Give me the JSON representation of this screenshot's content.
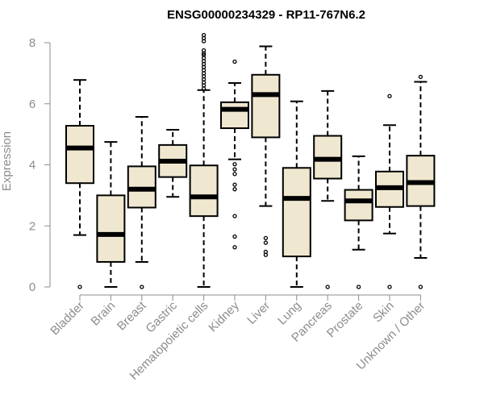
{
  "chart_data": {
    "type": "boxplot",
    "title": "ENSG00000234329 - RP11-767N6.2",
    "xlabel": "",
    "ylabel": "Expression",
    "ylim": [
      0,
      8
    ],
    "yticks": [
      "0",
      "2",
      "4",
      "6",
      "8"
    ],
    "grid": false,
    "colors": {
      "box_fill": "#efe7cf",
      "stroke": "#000000",
      "axis": "#8c8c8c"
    },
    "categories": [
      "Bladder",
      "Brain",
      "Breast",
      "Gastric",
      "Hematopoietic cells",
      "Kidney",
      "Liver",
      "Lung",
      "Pancreas",
      "Prostate",
      "Skin",
      "Unknown / Other"
    ],
    "boxes": [
      {
        "q1": 3.4,
        "median": 4.55,
        "q3": 5.28,
        "whisker_low": 1.7,
        "whisker_high": 6.78,
        "outliers": [
          0.0
        ]
      },
      {
        "q1": 0.82,
        "median": 1.72,
        "q3": 3.0,
        "whisker_low": 0.0,
        "whisker_high": 4.75,
        "outliers": []
      },
      {
        "q1": 2.6,
        "median": 3.2,
        "q3": 3.95,
        "whisker_low": 0.82,
        "whisker_high": 5.57,
        "outliers": [
          0.0
        ]
      },
      {
        "q1": 3.6,
        "median": 4.12,
        "q3": 4.65,
        "whisker_low": 2.95,
        "whisker_high": 5.15,
        "outliers": []
      },
      {
        "q1": 2.32,
        "median": 2.95,
        "q3": 3.98,
        "whisker_low": 0.0,
        "whisker_high": 6.45,
        "outliers": [
          6.5,
          6.6,
          6.7,
          6.8,
          6.9,
          7.0,
          7.1,
          7.2,
          7.3,
          7.4,
          7.5,
          7.6,
          7.65,
          7.75,
          8.05,
          8.15,
          8.25
        ]
      },
      {
        "q1": 5.2,
        "median": 5.82,
        "q3": 6.05,
        "whisker_low": 4.18,
        "whisker_high": 6.68,
        "outliers": [
          7.38,
          4.02,
          3.85,
          3.7,
          3.35,
          3.2,
          2.32,
          1.65,
          1.3
        ]
      },
      {
        "q1": 4.9,
        "median": 6.3,
        "q3": 6.95,
        "whisker_low": 2.65,
        "whisker_high": 7.88,
        "outliers": [
          1.6,
          1.45,
          1.15,
          1.05
        ]
      },
      {
        "q1": 1.0,
        "median": 2.9,
        "q3": 3.9,
        "whisker_low": 0.0,
        "whisker_high": 6.08,
        "outliers": []
      },
      {
        "q1": 3.55,
        "median": 4.18,
        "q3": 4.95,
        "whisker_low": 2.82,
        "whisker_high": 6.42,
        "outliers": [
          0.0
        ]
      },
      {
        "q1": 2.18,
        "median": 2.82,
        "q3": 3.18,
        "whisker_low": 1.22,
        "whisker_high": 4.28,
        "outliers": [
          0.0
        ]
      },
      {
        "q1": 2.62,
        "median": 3.25,
        "q3": 3.78,
        "whisker_low": 1.75,
        "whisker_high": 5.3,
        "outliers": [
          6.25,
          0.0
        ]
      },
      {
        "q1": 2.65,
        "median": 3.42,
        "q3": 4.3,
        "whisker_low": 0.95,
        "whisker_high": 6.72,
        "outliers": [
          6.88,
          0.0
        ]
      }
    ]
  }
}
